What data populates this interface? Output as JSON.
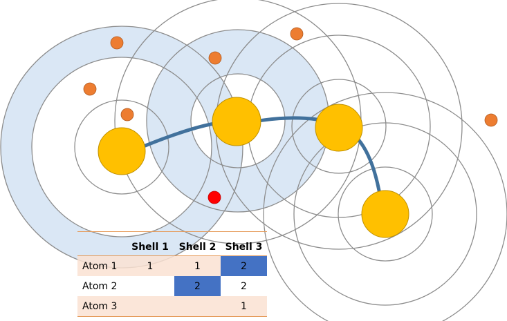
{
  "table": {
    "headers": [
      "",
      "Shell 1",
      "Shell 2",
      "Shell 3"
    ],
    "rows": [
      {
        "label": "Atom 1",
        "cells": [
          "1",
          "1",
          "2"
        ],
        "highlight": [
          false,
          false,
          true
        ],
        "striped": true
      },
      {
        "label": "Atom 2",
        "cells": [
          "",
          "2",
          "2"
        ],
        "highlight": [
          false,
          true,
          false
        ],
        "striped": false
      },
      {
        "label": "Atom 3",
        "cells": [
          "",
          "",
          "1"
        ],
        "highlight": [
          false,
          false,
          false
        ],
        "striped": true
      }
    ]
  },
  "colors": {
    "nucleus": "#ffc000",
    "nucleus_stroke": "#bf9000",
    "electron": "#ed7d31",
    "electron_highlight": "#ff0000",
    "bond": "#41719c",
    "shell_fill": "#dae7f5",
    "shell_stroke": "#8c8c8c",
    "table_highlight": "#4472c4",
    "table_stripe": "#fbe5d6",
    "table_rule": "#e69c5c"
  }
}
